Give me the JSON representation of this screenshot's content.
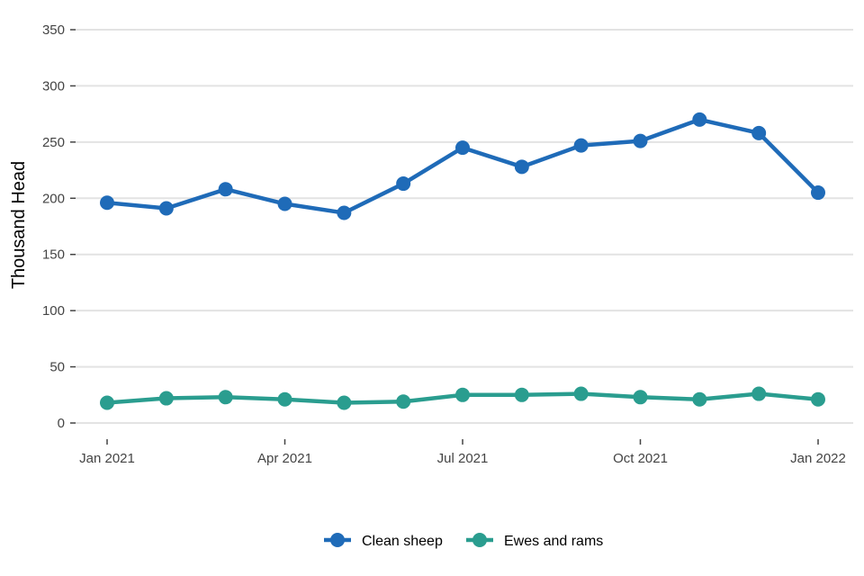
{
  "chart_data": {
    "type": "line",
    "title": "",
    "xlabel": "",
    "ylabel": "Thousand Head",
    "x": [
      "2021-01",
      "2021-02",
      "2021-03",
      "2021-04",
      "2021-05",
      "2021-06",
      "2021-07",
      "2021-08",
      "2021-09",
      "2021-10",
      "2021-11",
      "2021-12",
      "2022-01"
    ],
    "x_ticks": [
      "Jan 2021",
      "Apr 2021",
      "Jul 2021",
      "Oct 2021",
      "Jan 2022"
    ],
    "ylim": [
      0,
      350
    ],
    "y_ticks": [
      "0",
      "50",
      "100",
      "150",
      "200",
      "250",
      "300",
      "350"
    ],
    "grid": "horizontal",
    "legend_position": "bottom",
    "series": [
      {
        "name": "Clean sheep",
        "color": "#1f6bb8",
        "values": [
          196,
          191,
          208,
          195,
          187,
          213,
          245,
          228,
          247,
          251,
          270,
          258,
          205
        ]
      },
      {
        "name": "Ewes and rams",
        "color": "#2a9d8f",
        "values": [
          18,
          22,
          23,
          21,
          18,
          19,
          25,
          25,
          26,
          23,
          21,
          26,
          21
        ]
      }
    ]
  }
}
